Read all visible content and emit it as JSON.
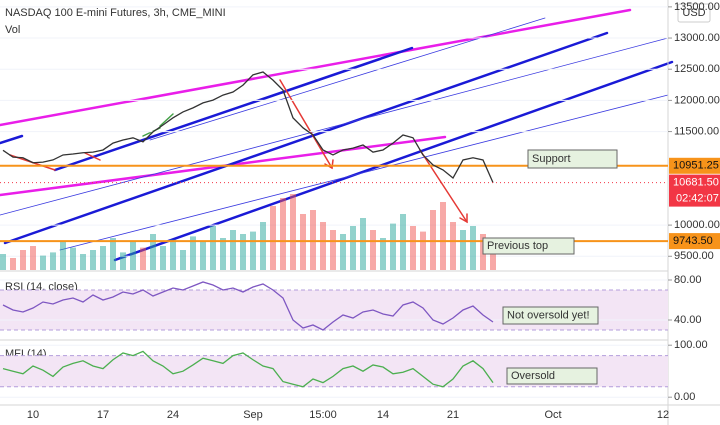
{
  "chart_data": [
    {
      "type": "line",
      "title": "NASDAQ 100 E-mini Futures, 3h, CME_MINI",
      "currency": "USD",
      "categories": [
        null,
        null,
        null,
        "10",
        null,
        null,
        null,
        null,
        null,
        null,
        "17",
        null,
        null,
        null,
        null,
        null,
        null,
        "24",
        null,
        null,
        null,
        null,
        null,
        null,
        null,
        "Sep",
        null,
        null,
        null,
        null,
        null,
        null,
        "15:00",
        null,
        null,
        null,
        null,
        null,
        "14",
        null,
        null,
        null,
        null,
        null,
        null,
        "21",
        null,
        null,
        null,
        null,
        null,
        null,
        null,
        null,
        null,
        "Oct",
        null,
        null,
        null,
        null,
        null,
        null,
        null,
        null,
        null,
        null,
        "12"
      ],
      "values": [
        11200,
        11090,
        11080,
        11000,
        11010,
        11045,
        11125,
        11140,
        11160,
        11170,
        11205,
        11315,
        11365,
        11400,
        11335,
        11495,
        11605,
        11720,
        11815,
        11880,
        11960,
        12005,
        12085,
        12135,
        12245,
        12410,
        12455,
        12325,
        12165,
        11720,
        11560,
        11445,
        11205,
        11125,
        11205,
        11235,
        11285,
        11170,
        11205,
        11315,
        11445,
        11400,
        11125,
        10965,
        10885,
        10755,
        11045,
        11080,
        11045,
        10681.5,
        null,
        null,
        null,
        null,
        null,
        null,
        null,
        null,
        null,
        null,
        null,
        null,
        null,
        null,
        null,
        null,
        null
      ],
      "color": "#333333",
      "volume": {
        "name": "Vol",
        "values": [
          20,
          15,
          25,
          30,
          18,
          22,
          35,
          28,
          20,
          25,
          30,
          40,
          22,
          35,
          28,
          45,
          30,
          38,
          25,
          42,
          35,
          55,
          40,
          50,
          45,
          48,
          60,
          80,
          90,
          95,
          70,
          75,
          60,
          50,
          45,
          55,
          65,
          50,
          40,
          58,
          70,
          55,
          48,
          75,
          85,
          60,
          50,
          55,
          45,
          40,
          null,
          null,
          null,
          null,
          null,
          null,
          null,
          null,
          null,
          null,
          null,
          null,
          null,
          null,
          null,
          null,
          null
        ],
        "ylim": [
          0,
          100
        ],
        "up_color": "#26a69a",
        "down_color": "#ef5350"
      },
      "ylim": [
        9280,
        13610
      ],
      "yticks": [
        {
          "value": 9500,
          "label": "9500.00"
        },
        {
          "value": 10000,
          "label": "10000.00"
        },
        {
          "value": 11500,
          "label": "11500.00"
        },
        {
          "value": 12000,
          "label": "12000.00"
        },
        {
          "value": 12500,
          "label": "12500.00"
        },
        {
          "value": 13000,
          "label": "13000.00"
        },
        {
          "value": 13500,
          "label": "13500.00"
        }
      ],
      "hlines": [
        {
          "value": 10951.25,
          "label": "10951.25",
          "color": "#f7931a"
        },
        {
          "value": 9743.5,
          "label": "9743.50",
          "color": "#f7931a"
        }
      ],
      "last_price": {
        "value": 10681.5,
        "label": "10681.50",
        "color": "#f23645"
      },
      "countdown": "02:42:07",
      "annotations": [
        "Support",
        "Previous top"
      ]
    },
    {
      "type": "line",
      "title": "RSI (14, close)",
      "color": "#7e57c2",
      "values": [
        55,
        50,
        48,
        52,
        58,
        56,
        60,
        62,
        58,
        65,
        60,
        63,
        68,
        66,
        70,
        64,
        68,
        72,
        70,
        74,
        78,
        75,
        70,
        72,
        68,
        73,
        76,
        70,
        62,
        40,
        32,
        35,
        30,
        38,
        45,
        42,
        48,
        50,
        46,
        44,
        55,
        58,
        52,
        40,
        36,
        42,
        50,
        54,
        45,
        38,
        null,
        null,
        null,
        null,
        null,
        null,
        null,
        null,
        null,
        null,
        null,
        null,
        null,
        null,
        null,
        null,
        null
      ],
      "ylim": [
        20,
        88
      ],
      "yticks": [
        {
          "value": 40,
          "label": "40.00"
        },
        {
          "value": 80,
          "label": "80.00"
        }
      ],
      "band": [
        30,
        70
      ],
      "band_color": "#f3e5f5",
      "annotations": [
        "Not oversold yet!"
      ]
    },
    {
      "type": "line",
      "title": "MFI (14)",
      "color": "#4caf50",
      "values": [
        55,
        50,
        45,
        60,
        52,
        40,
        58,
        65,
        70,
        60,
        55,
        72,
        85,
        80,
        88,
        70,
        60,
        45,
        50,
        62,
        75,
        70,
        65,
        80,
        85,
        72,
        60,
        55,
        30,
        25,
        20,
        35,
        28,
        40,
        55,
        60,
        50,
        62,
        58,
        45,
        48,
        55,
        40,
        25,
        20,
        35,
        60,
        70,
        55,
        28,
        null,
        null,
        null,
        null,
        null,
        null,
        null,
        null,
        null,
        null,
        null,
        null,
        null,
        null,
        null,
        null,
        null
      ],
      "ylim": [
        -15,
        110
      ],
      "yticks": [
        {
          "value": 0,
          "label": "0.00"
        },
        {
          "value": 100,
          "label": "100.00"
        }
      ],
      "band": [
        20,
        80
      ],
      "band_color": "#f3e5f5",
      "annotations": [
        "Oversold"
      ]
    }
  ]
}
